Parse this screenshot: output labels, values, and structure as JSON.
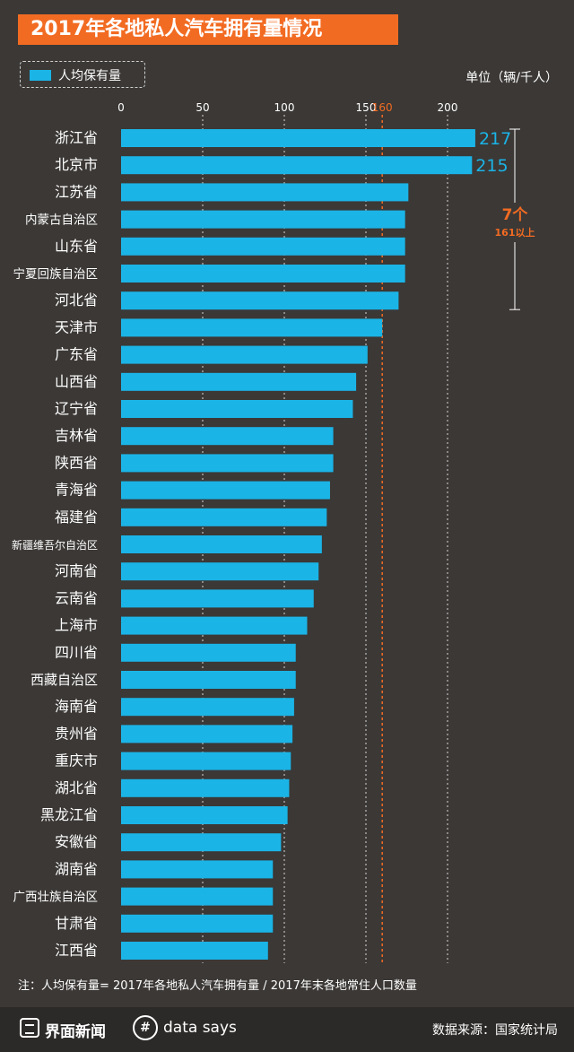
{
  "header": {
    "title": "2017年各地私人汽车拥有量情况"
  },
  "legend": {
    "label": "人均保有量",
    "color": "#1bb4e6"
  },
  "unit_label": "单位（辆/千人）",
  "annotation": {
    "main": "7个",
    "sub": "161以上",
    "color": "#f26b22"
  },
  "note": "注：人均保有量= 2017年各地私人汽车拥有量 / 2017年末各地常住人口数量",
  "footer": {
    "brand_left": "界面新闻",
    "brand_right": "data says",
    "brand_right_icon": "hash-circle-icon",
    "source": "数据来源：国家统计局"
  },
  "colors": {
    "bar": "#1bb4e6",
    "accent": "#f26b22",
    "background": "#3b3836"
  },
  "chart_data": {
    "type": "bar",
    "orientation": "horizontal",
    "xlim": [
      0,
      220
    ],
    "ticks": [
      0,
      50,
      100,
      150,
      200
    ],
    "ticks_display": [
      "0",
      "50",
      "100",
      "150",
      "200"
    ],
    "reference_line": {
      "value": 160,
      "label": "160"
    },
    "series": [
      {
        "name": "人均保有量"
      }
    ],
    "categories": [
      "浙江省",
      "北京市",
      "江苏省",
      "内蒙古自治区",
      "山东省",
      "宁夏回族自治区",
      "河北省",
      "天津市",
      "广东省",
      "山西省",
      "辽宁省",
      "吉林省",
      "陕西省",
      "青海省",
      "福建省",
      "新疆维吾尔自治区",
      "河南省",
      "云南省",
      "上海市",
      "四川省",
      "西藏自治区",
      "海南省",
      "贵州省",
      "重庆市",
      "湖北省",
      "黑龙江省",
      "安徽省",
      "湖南省",
      "广西壮族自治区",
      "甘肃省",
      "江西省"
    ],
    "values": [
      217,
      215,
      176,
      174,
      174,
      174,
      170,
      160,
      151,
      144,
      142,
      130,
      130,
      128,
      126,
      123,
      121,
      118,
      114,
      107,
      107,
      106,
      105,
      104,
      103,
      102,
      98,
      93,
      93,
      93,
      90
    ],
    "value_labels": [
      "217",
      "215",
      "",
      "",
      "",
      "",
      "",
      "",
      "",
      "",
      "",
      "",
      "",
      "",
      "",
      "",
      "",
      "",
      "",
      "",
      "",
      "",
      "",
      "",
      "",
      "",
      "",
      "",
      "",
      "",
      ""
    ],
    "grid": true
  }
}
